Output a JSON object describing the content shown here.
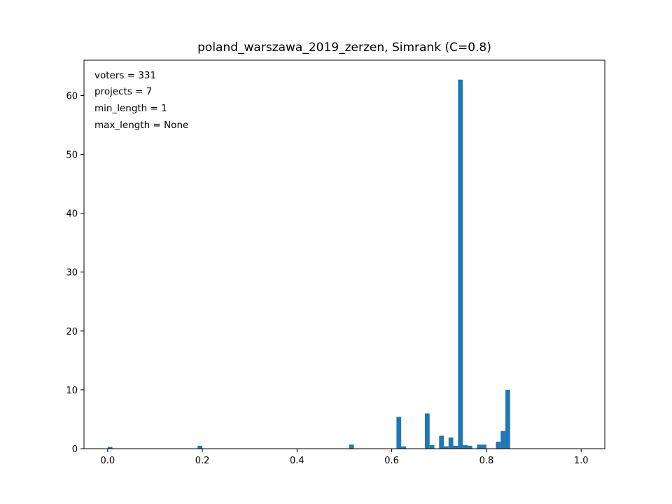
{
  "chart_data": {
    "type": "bar",
    "title": "poland_warszawa_2019_zerzen, Simrank (C=0.8)",
    "xlabel": "",
    "ylabel": "",
    "xlim": [
      -0.05,
      1.05
    ],
    "ylim": [
      0,
      66
    ],
    "bin_width": 0.01,
    "xticks": [
      0.0,
      0.2,
      0.4,
      0.6,
      0.8,
      1.0
    ],
    "xtick_labels": [
      "0.0",
      "0.2",
      "0.4",
      "0.6",
      "0.8",
      "1.0"
    ],
    "yticks": [
      0,
      10,
      20,
      30,
      40,
      50,
      60
    ],
    "ytick_labels": [
      "0",
      "10",
      "20",
      "30",
      "40",
      "50",
      "60"
    ],
    "grid": false,
    "color": "#1f77b4",
    "bars": [
      {
        "x": 0.0,
        "value": 0.3
      },
      {
        "x": 0.19,
        "value": 0.5
      },
      {
        "x": 0.51,
        "value": 0.7
      },
      {
        "x": 0.61,
        "value": 5.4
      },
      {
        "x": 0.62,
        "value": 0.4
      },
      {
        "x": 0.67,
        "value": 6.0
      },
      {
        "x": 0.68,
        "value": 0.6
      },
      {
        "x": 0.7,
        "value": 2.2
      },
      {
        "x": 0.71,
        "value": 0.4
      },
      {
        "x": 0.72,
        "value": 1.9
      },
      {
        "x": 0.73,
        "value": 0.5
      },
      {
        "x": 0.74,
        "value": 62.7
      },
      {
        "x": 0.75,
        "value": 0.6
      },
      {
        "x": 0.76,
        "value": 0.5
      },
      {
        "x": 0.78,
        "value": 0.7
      },
      {
        "x": 0.79,
        "value": 0.7
      },
      {
        "x": 0.82,
        "value": 1.2
      },
      {
        "x": 0.83,
        "value": 3.0
      },
      {
        "x": 0.84,
        "value": 10.0
      }
    ],
    "annotations": [
      "voters = 331",
      "projects = 7",
      "min_length = 1",
      "max_length = None"
    ]
  }
}
